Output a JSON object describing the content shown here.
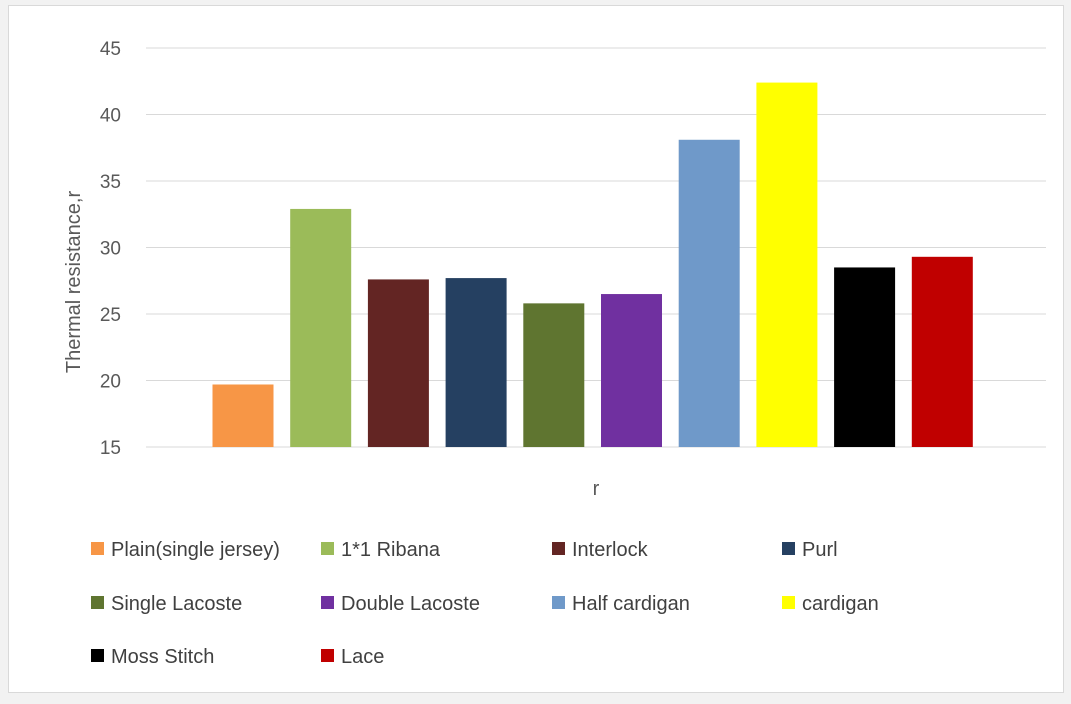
{
  "chart_data": {
    "type": "bar",
    "title": "",
    "xlabel": "r",
    "ylabel": "Thermal resistance,r",
    "ylim": [
      15,
      45
    ],
    "yticks": [
      15,
      20,
      25,
      30,
      35,
      40,
      45
    ],
    "grid": true,
    "legend_position": "bottom",
    "series": [
      {
        "name": "Plain(single jersey)",
        "value": 19.7,
        "color": "#F79646"
      },
      {
        "name": "1*1 Ribana",
        "value": 32.9,
        "color": "#9BBB59"
      },
      {
        "name": "Interlock",
        "value": 27.6,
        "color": "#632523"
      },
      {
        "name": "Purl",
        "value": 27.7,
        "color": "#254061"
      },
      {
        "name": "Single Lacoste",
        "value": 25.8,
        "color": "#5F7530"
      },
      {
        "name": "Double Lacoste",
        "value": 26.5,
        "color": "#7030A0"
      },
      {
        "name": "Half cardigan",
        "value": 38.1,
        "color": "#6F99C9"
      },
      {
        "name": "cardigan",
        "value": 42.4,
        "color": "#FFFF00"
      },
      {
        "name": "Moss Stitch",
        "value": 28.5,
        "color": "#000000"
      },
      {
        "name": "Lace",
        "value": 29.3,
        "color": "#C00000"
      }
    ]
  }
}
